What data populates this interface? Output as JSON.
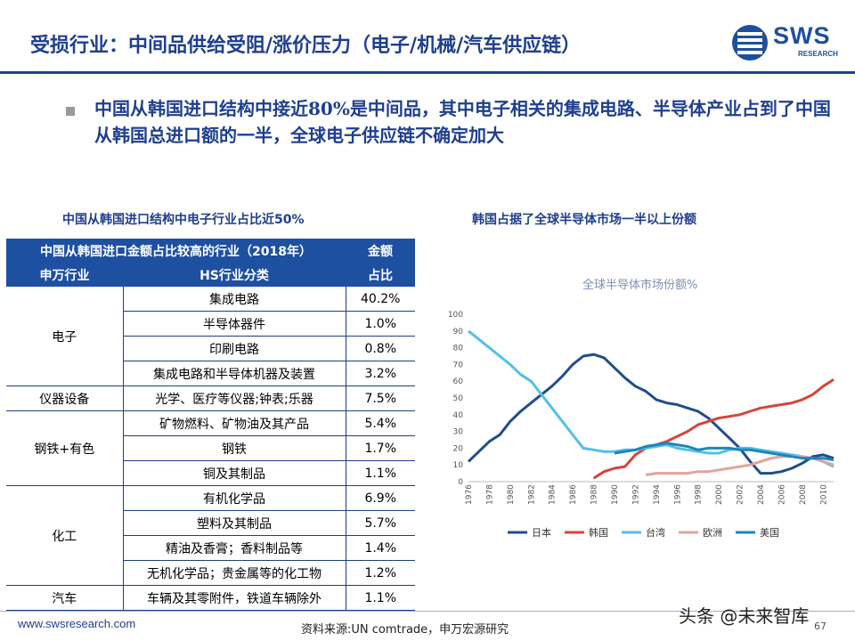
{
  "header": {
    "title": "受损行业：中间品供给受阻/涨价压力（电子/机械/汽车供应链）",
    "logo_text": "SWS",
    "logo_sub": "RESEARCH"
  },
  "bullet": {
    "text": "中国从韩国进口结构中接近80%是中间品，其中电子相关的集成电路、半导体产业占到了中国从韩国总进口额的一半，全球电子供应链不确定加大"
  },
  "left_panel": {
    "title": "中国从韩国进口结构中电子行业占比近50%",
    "table": {
      "header_row1_left": "中国从韩国进口金额占比较高的行业（2018年）",
      "header_row1_right": "金额",
      "header_row2_col1": "申万行业",
      "header_row2_col2": "HS行业分类",
      "header_row2_col3": "占比",
      "groups": [
        {
          "name": "电子",
          "rows": [
            {
              "hs": "集成电路",
              "share": "40.2%"
            },
            {
              "hs": "半导体器件",
              "share": "1.0%"
            },
            {
              "hs": "印刷电路",
              "share": "0.8%"
            },
            {
              "hs": "集成电路和半导体机器及装置",
              "share": "3.2%"
            }
          ]
        },
        {
          "name": "仪器设备",
          "rows": [
            {
              "hs": "光学、医疗等仪器;钟表;乐器",
              "share": "7.5%"
            }
          ]
        },
        {
          "name": "钢铁+有色",
          "rows": [
            {
              "hs": "矿物燃料、矿物油及其产品",
              "share": "5.4%"
            },
            {
              "hs": "钢铁",
              "share": "1.7%"
            },
            {
              "hs": "铜及其制品",
              "share": "1.1%"
            }
          ]
        },
        {
          "name": "化工",
          "rows": [
            {
              "hs": "有机化学品",
              "share": "6.9%"
            },
            {
              "hs": "塑料及其制品",
              "share": "5.7%"
            },
            {
              "hs": "精油及香膏；香料制品等",
              "share": "1.4%"
            },
            {
              "hs": "无机化学品；贵金属等的化工物",
              "share": "1.2%"
            }
          ]
        },
        {
          "name": "汽车",
          "rows": [
            {
              "hs": "车辆及其零附件，铁道车辆除外",
              "share": "1.1%"
            }
          ]
        }
      ]
    }
  },
  "right_panel": {
    "title": "韩国占据了全球半导体市场一半以上份额"
  },
  "chart_data": {
    "type": "line",
    "title": "全球半导体市场份额%",
    "ylim": [
      0,
      100
    ],
    "yticks": [
      0,
      10,
      20,
      30,
      40,
      50,
      60,
      70,
      80,
      90,
      100
    ],
    "x": [
      1976,
      1977,
      1978,
      1979,
      1980,
      1981,
      1982,
      1983,
      1984,
      1985,
      1986,
      1987,
      1988,
      1989,
      1990,
      1991,
      1992,
      1993,
      1994,
      1995,
      1996,
      1997,
      1998,
      1999,
      2000,
      2001,
      2002,
      2003,
      2004,
      2005,
      2006,
      2007,
      2008,
      2009,
      2010,
      2011
    ],
    "xticks": [
      1976,
      1978,
      1980,
      1982,
      1984,
      1986,
      1988,
      1990,
      1992,
      1994,
      1996,
      1998,
      2000,
      2002,
      2004,
      2006,
      2008,
      2010
    ],
    "series": [
      {
        "name": "日本",
        "color": "#1f4e8c",
        "values": [
          12,
          18,
          24,
          28,
          36,
          42,
          47,
          52,
          57,
          63,
          70,
          75,
          76,
          74,
          68,
          62,
          57,
          54,
          49,
          47,
          46,
          44,
          42,
          38,
          32,
          26,
          20,
          12,
          5,
          5,
          6,
          8,
          11,
          15,
          16,
          14
        ]
      },
      {
        "name": "韩国",
        "color": "#d6453a",
        "values": [
          null,
          null,
          null,
          null,
          null,
          null,
          null,
          null,
          null,
          null,
          null,
          null,
          2,
          6,
          8,
          9,
          16,
          20,
          22,
          24,
          27,
          30,
          34,
          36,
          38,
          39,
          40,
          42,
          44,
          45,
          46,
          47,
          49,
          52,
          57,
          61
        ]
      },
      {
        "name": "台湾",
        "color": "#53c1e3",
        "values": [
          90,
          85,
          80,
          75,
          70,
          64,
          60,
          52,
          44,
          36,
          28,
          20,
          19,
          18,
          18,
          19,
          19,
          20,
          21,
          22,
          20,
          19,
          18,
          17,
          17,
          19,
          20,
          20,
          19,
          18,
          17,
          16,
          15,
          14,
          12,
          9
        ]
      },
      {
        "name": "欧洲",
        "color": "#e3a39b",
        "values": [
          null,
          null,
          null,
          null,
          null,
          null,
          null,
          null,
          null,
          null,
          null,
          null,
          null,
          null,
          null,
          null,
          null,
          4,
          5,
          5,
          5,
          5,
          6,
          6,
          7,
          8,
          9,
          10,
          12,
          14,
          15,
          15,
          15,
          14,
          12,
          10
        ]
      },
      {
        "name": "美国",
        "color": "#1a86bf",
        "values": [
          null,
          null,
          null,
          null,
          null,
          null,
          null,
          null,
          null,
          null,
          null,
          null,
          null,
          null,
          17,
          18,
          19,
          21,
          22,
          23,
          22,
          21,
          19,
          20,
          20,
          20,
          19,
          19,
          18,
          17,
          16,
          15,
          14,
          14,
          14,
          13
        ]
      }
    ]
  },
  "footer": {
    "url": "www.swsresearch.com",
    "source": "资料来源:UN comtrade，申万宏源研究",
    "page": "67",
    "watermark": "头条 @未来智库"
  }
}
